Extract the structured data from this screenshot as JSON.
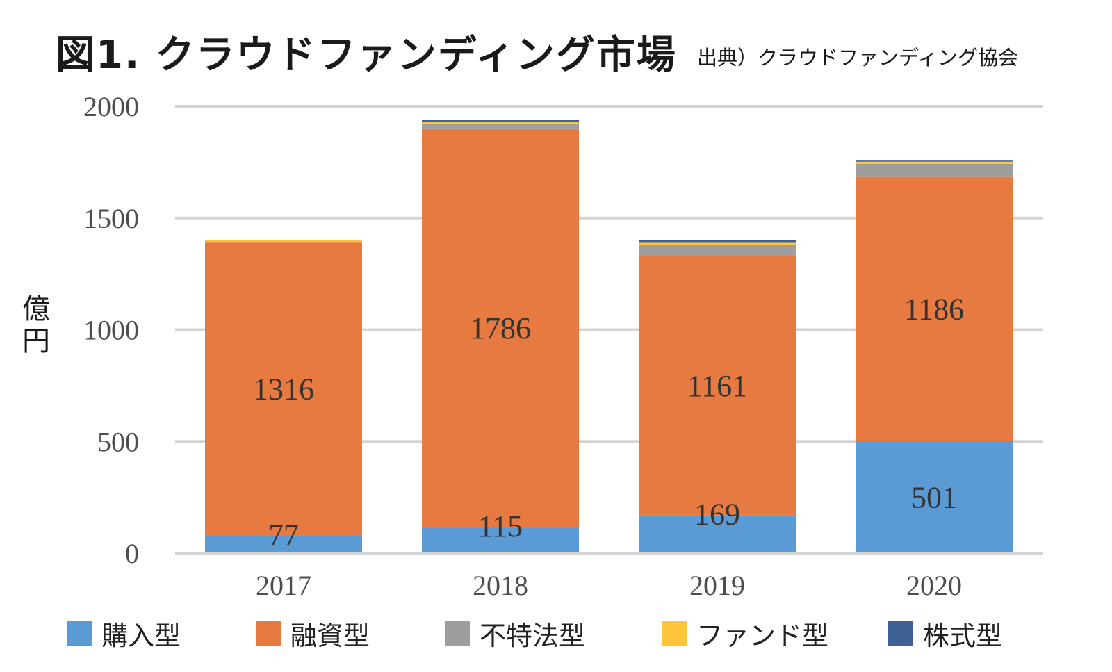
{
  "header": {
    "title": "図1. クラウドファンディング市場",
    "source": "出典）クラウドファンディング協会"
  },
  "chart_data": {
    "type": "bar",
    "stacked": true,
    "ylabel": "億円",
    "ylim": [
      0,
      2000
    ],
    "yticks": [
      "0",
      "500",
      "1000",
      "1500",
      "2000"
    ],
    "categories": [
      "2017",
      "2018",
      "2019",
      "2020"
    ],
    "series": [
      {
        "name": "購入型",
        "color": "#5b9bd5",
        "values": [
          77,
          115,
          169,
          501
        ]
      },
      {
        "name": "融資型",
        "color": "#e67a40",
        "values": [
          1316,
          1786,
          1161,
          1186
        ]
      },
      {
        "name": "不特法型",
        "color": "#9e9e9e",
        "values": [
          0,
          20,
          50,
          55
        ]
      },
      {
        "name": "ファンド型",
        "color": "#ffc43a",
        "values": [
          7,
          10,
          12,
          10
        ]
      },
      {
        "name": "株式型",
        "color": "#3e6193",
        "values": [
          2,
          7,
          8,
          8
        ]
      }
    ],
    "data_labels": [
      {
        "series": "購入型",
        "values": [
          "77",
          "115",
          "169",
          "501"
        ]
      },
      {
        "series": "融資型",
        "values": [
          "1316",
          "1786",
          "1161",
          "1186"
        ]
      }
    ],
    "legend_position": "bottom"
  }
}
